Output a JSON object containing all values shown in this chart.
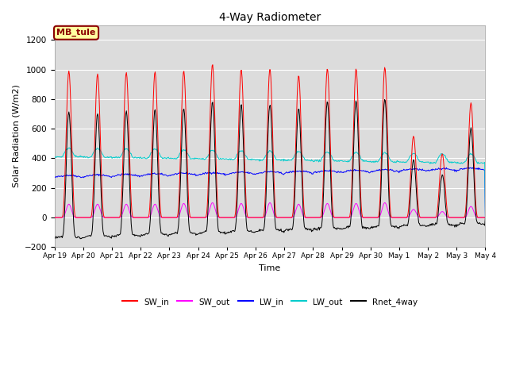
{
  "title": "4-Way Radiometer",
  "xlabel": "Time",
  "ylabel": "Solar Radiation (W/m2)",
  "ylim": [
    -200,
    1300
  ],
  "yticks": [
    -200,
    0,
    200,
    400,
    600,
    800,
    1000,
    1200
  ],
  "annotation_text": "MB_tule",
  "annotation_color": "#8B0000",
  "annotation_bg": "#FFFFA0",
  "bg_color": "#DCDCDC",
  "line_colors": {
    "SW_in": "#FF0000",
    "SW_out": "#FF00FF",
    "LW_in": "#0000FF",
    "LW_out": "#00CCCC",
    "Rnet_4way": "#000000"
  },
  "legend_labels": [
    "SW_in",
    "SW_out",
    "LW_in",
    "LW_out",
    "Rnet_4way"
  ],
  "num_days": 15,
  "SW_in_peaks": [
    990,
    970,
    980,
    985,
    990,
    1035,
    1000,
    1005,
    960,
    1005,
    1005,
    1015,
    550,
    430,
    775
  ],
  "SW_out_peaks": [
    90,
    90,
    90,
    90,
    95,
    100,
    95,
    100,
    90,
    95,
    95,
    100,
    55,
    40,
    75
  ],
  "LW_in_base": 270,
  "LW_out_base": 340,
  "figure_width": 6.4,
  "figure_height": 4.8,
  "dpi": 100,
  "tick_labels": [
    "Apr 19",
    "Apr 20",
    "Apr 21",
    "Apr 22",
    "Apr 23",
    "Apr 24",
    "Apr 25",
    "Apr 26",
    "Apr 27",
    "Apr 28",
    "Apr 29",
    "Apr 30",
    "May 1",
    "May 2",
    "May 3",
    "May 4"
  ]
}
